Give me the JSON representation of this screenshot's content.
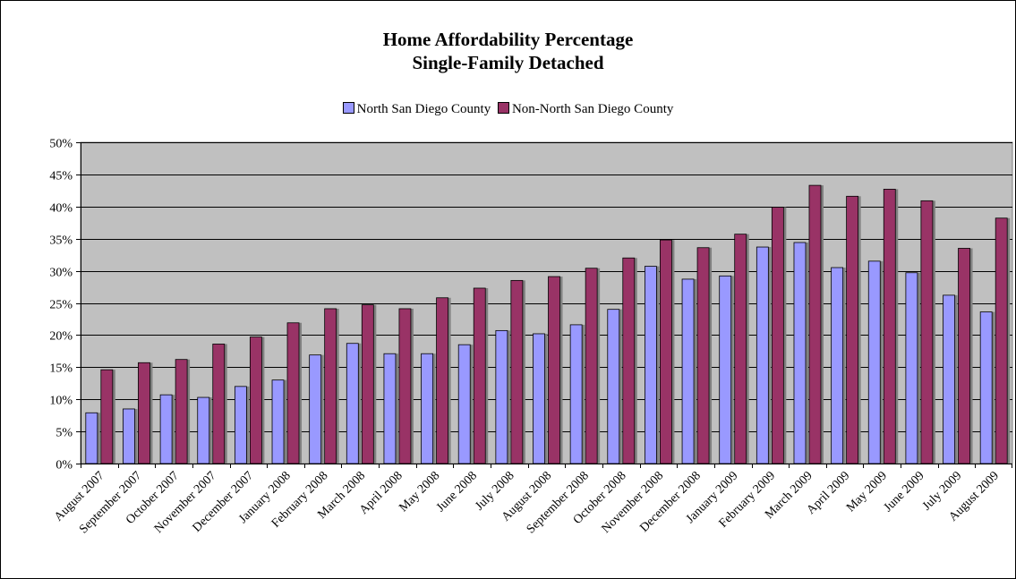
{
  "chart_data": {
    "type": "bar",
    "title": [
      "Home Affordability Percentage",
      "Single-Family Detached"
    ],
    "legend_position": "top",
    "grid": true,
    "ylim": [
      0,
      50
    ],
    "yticks": [
      "0%",
      "5%",
      "10%",
      "15%",
      "20%",
      "25%",
      "30%",
      "35%",
      "40%",
      "45%",
      "50%"
    ],
    "categories": [
      "August 2007",
      "September 2007",
      "October 2007",
      "November 2007",
      "December 2007",
      "January 2008",
      "February 2008",
      "March 2008",
      "April 2008",
      "May 2008",
      "June 2008",
      "July 2008",
      "August 2008",
      "September 2008",
      "October 2008",
      "November 2008",
      "December 2008",
      "January 2009",
      "February 2009",
      "March 2009",
      "April 2009",
      "May 2009",
      "June 2009",
      "July 2009",
      "August 2009"
    ],
    "series": [
      {
        "name": "North San Diego County",
        "color": "#9999ff",
        "values": [
          7.9,
          8.5,
          10.7,
          10.3,
          12.0,
          13.0,
          16.9,
          18.7,
          17.1,
          17.1,
          18.5,
          20.7,
          20.2,
          21.6,
          24.0,
          30.7,
          28.7,
          29.2,
          33.7,
          34.4,
          30.5,
          31.5,
          29.7,
          26.2,
          23.6
        ]
      },
      {
        "name": "Non-North San Diego County",
        "color": "#993366",
        "values": [
          14.6,
          15.7,
          16.2,
          18.6,
          19.7,
          21.9,
          24.1,
          24.7,
          24.1,
          25.8,
          27.3,
          28.5,
          29.1,
          30.4,
          32.0,
          34.8,
          33.6,
          35.7,
          39.9,
          43.3,
          41.6,
          42.7,
          40.9,
          33.5,
          38.2
        ]
      }
    ]
  }
}
